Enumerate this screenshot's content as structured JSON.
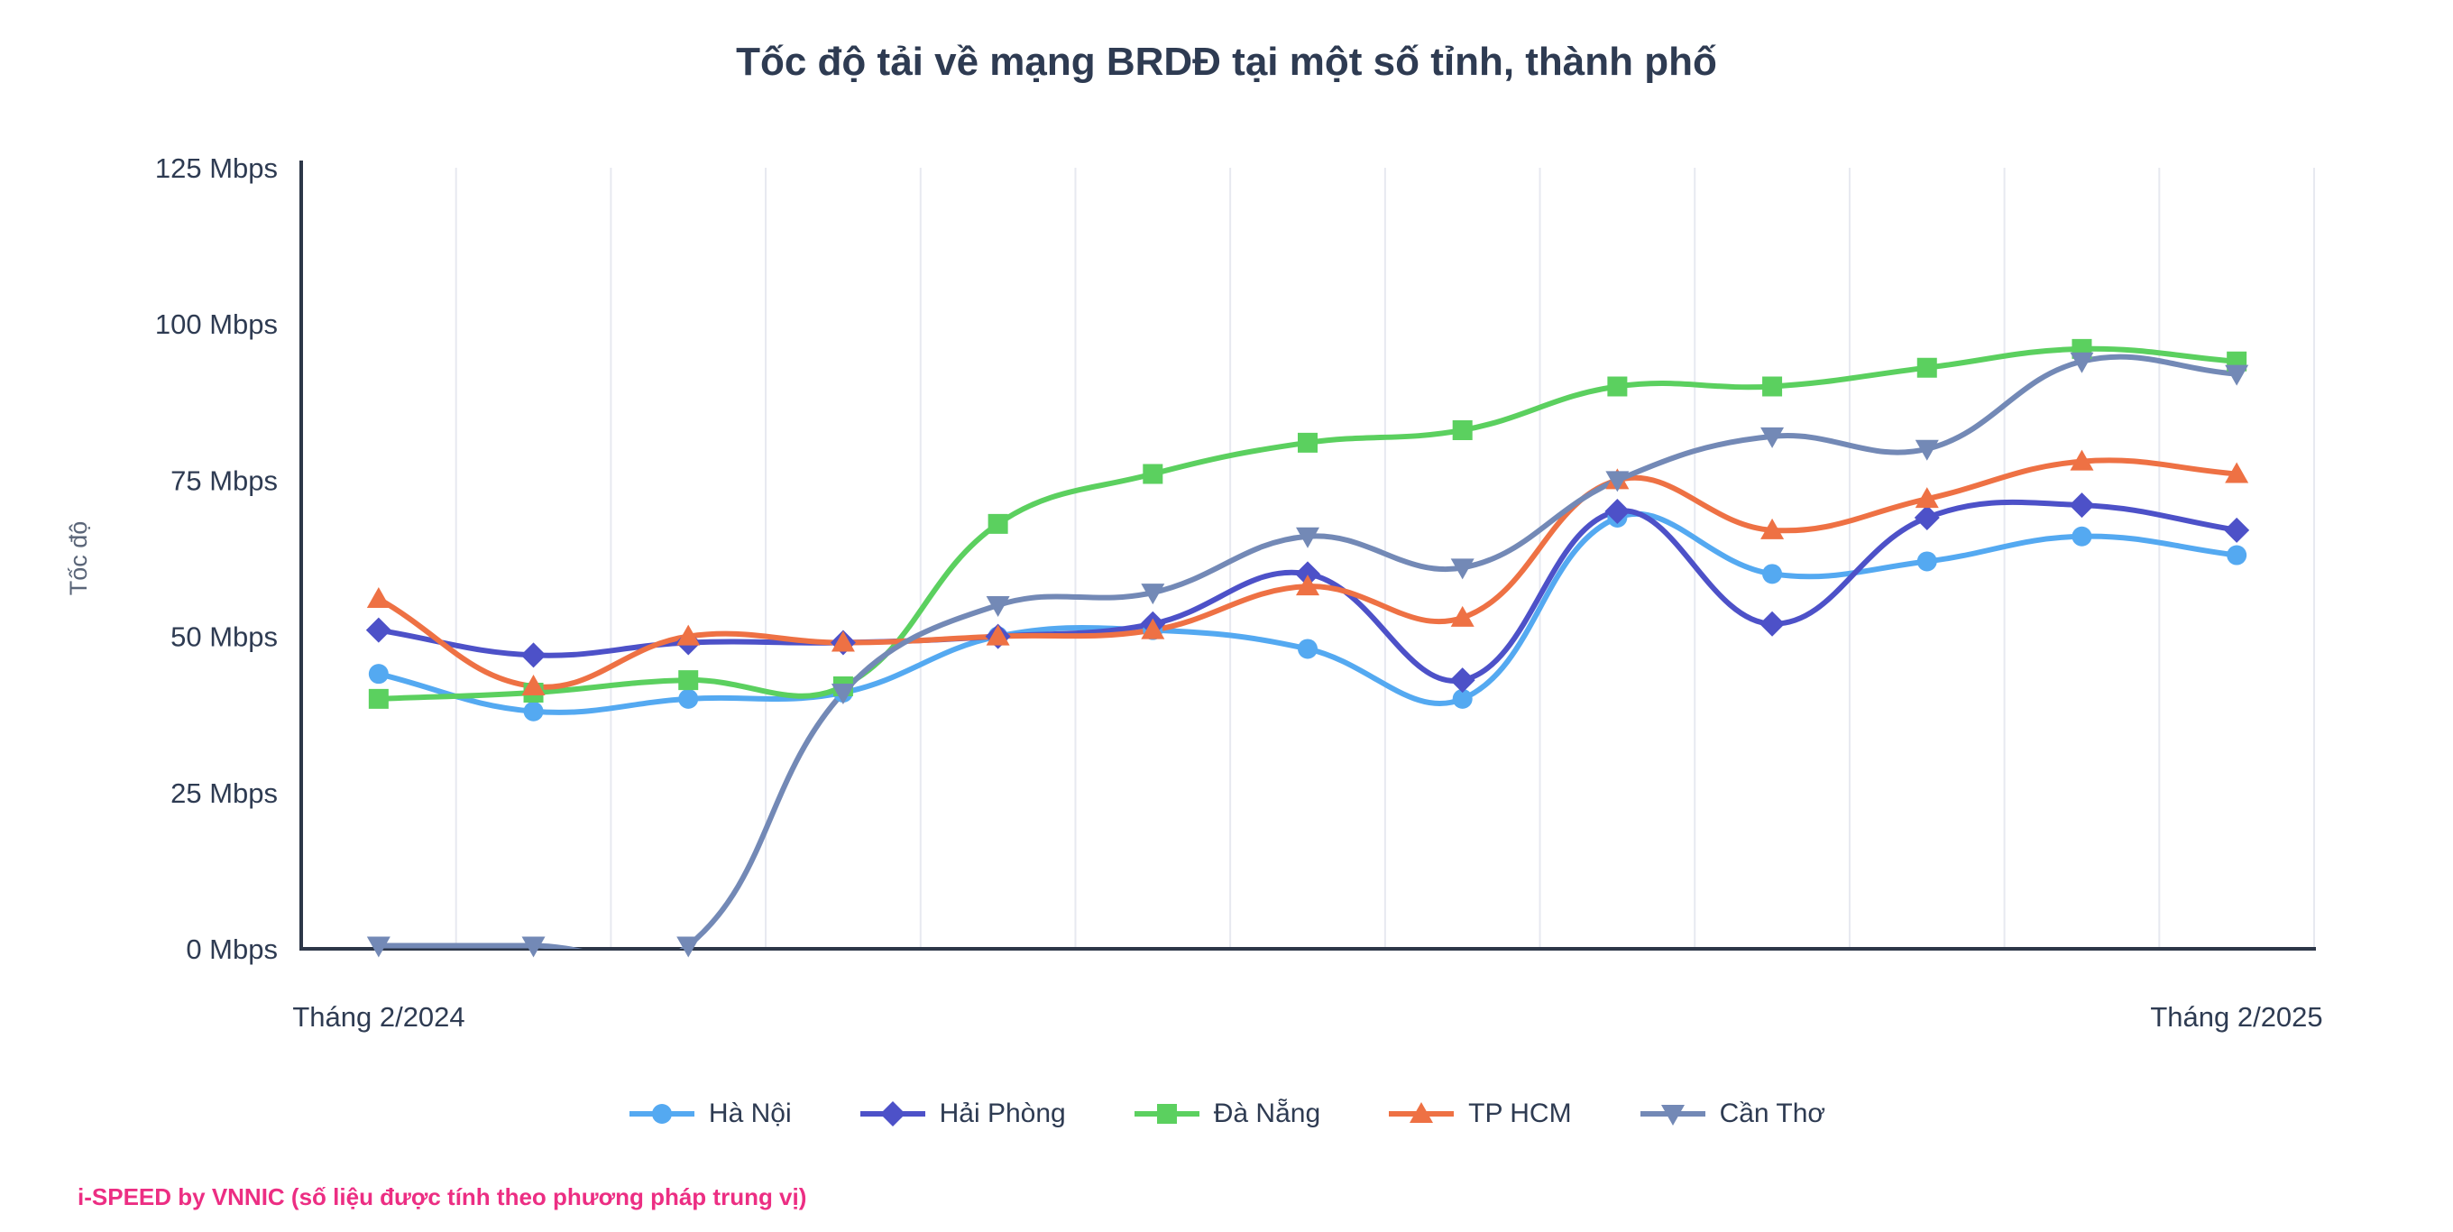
{
  "title": "Tốc độ tải về mạng BRDĐ tại một số tỉnh, thành phố",
  "footer": "i-SPEED by VNNIC (số liệu được tính theo phương pháp trung vị)",
  "chart_data": {
    "type": "line",
    "title": "Tốc độ tải về mạng BRDĐ tại một số tỉnh, thành phố",
    "ylabel": "Tốc độ",
    "ylim": [
      0,
      125
    ],
    "y_ticks": [
      {
        "label": "0 Mbps",
        "value": 0
      },
      {
        "label": "25 Mbps",
        "value": 25
      },
      {
        "label": "50 Mbps",
        "value": 50
      },
      {
        "label": "75 Mbps",
        "value": 75
      },
      {
        "label": "100 Mbps",
        "value": 100
      },
      {
        "label": "125 Mbps",
        "value": 125
      }
    ],
    "x_axis_labels": {
      "start": "Tháng 2/2024",
      "end": "Tháng 2/2025"
    },
    "grid": "vertical",
    "legend_position": "bottom",
    "series": [
      {
        "name": "Hà Nội",
        "marker": "circle",
        "color": "#54A9F1",
        "values": [
          44,
          38,
          40,
          41,
          50,
          51,
          48,
          40,
          69,
          60,
          62,
          66,
          63
        ]
      },
      {
        "name": "Hải Phòng",
        "marker": "diamond",
        "color": "#4D51C8",
        "values": [
          51,
          47,
          49,
          49,
          50,
          52,
          60,
          43,
          70,
          52,
          69,
          71,
          67
        ]
      },
      {
        "name": "Đà Nẵng",
        "marker": "square",
        "color": "#5BD05F",
        "values": [
          40,
          41,
          43,
          42,
          68,
          76,
          81,
          83,
          90,
          90,
          93,
          96,
          94
        ]
      },
      {
        "name": "TP HCM",
        "marker": "triangle-up",
        "color": "#EE7144",
        "values": [
          56,
          42,
          50,
          49,
          50,
          51,
          58,
          53,
          75,
          67,
          72,
          78,
          76
        ]
      },
      {
        "name": "Cần Thơ",
        "marker": "triangle-down",
        "color": "#7389B6",
        "values": [
          0.5,
          0.5,
          0.5,
          41,
          55,
          57,
          66,
          61,
          75,
          82,
          80,
          94,
          92
        ]
      }
    ]
  }
}
